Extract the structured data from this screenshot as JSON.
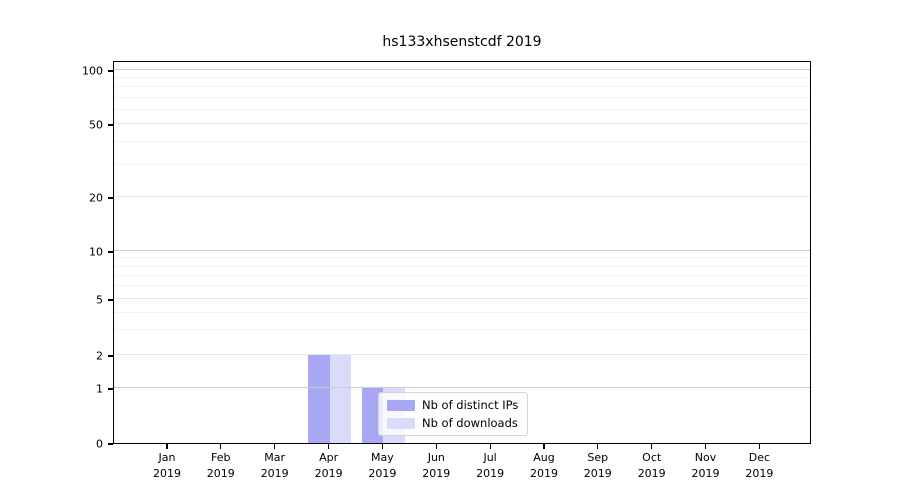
{
  "chart_data": {
    "type": "bar",
    "title": "hs133xhsenstcdf 2019",
    "xlabel": "",
    "ylabel": "",
    "categories": [
      "Jan",
      "Feb",
      "Mar",
      "Apr",
      "May",
      "Jun",
      "Jul",
      "Aug",
      "Sep",
      "Oct",
      "Nov",
      "Dec"
    ],
    "x_tick_year": "2019",
    "series": [
      {
        "name": "Nb of distinct IPs",
        "color": "#a7a7f3",
        "values": [
          0,
          0,
          0,
          2,
          1,
          0,
          0,
          0,
          0,
          0,
          0,
          0
        ]
      },
      {
        "name": "Nb of downloads",
        "color": "#dadafa",
        "values": [
          0,
          0,
          0,
          2,
          1,
          0,
          0,
          0,
          0,
          0,
          0,
          0
        ]
      }
    ],
    "yscale": "symlog",
    "ylim": [
      0,
      115
    ],
    "ytick_values": [
      0,
      1,
      2,
      5,
      10,
      20,
      50,
      100
    ],
    "ytick_labels": [
      "0",
      "1",
      "2",
      "5",
      "10",
      "20",
      "50",
      "100"
    ],
    "y_minor_gridlines": [
      3,
      4,
      6,
      7,
      8,
      9,
      30,
      40,
      60,
      70,
      80,
      90
    ],
    "grid": "horizontal",
    "legend_position": "lower center",
    "colors": {
      "background": "#ffffff",
      "axis": "#000000",
      "grid_power": "#cccccc",
      "grid_labeled": "#e8e8e8",
      "grid_minor": "#f3f3f3"
    }
  }
}
